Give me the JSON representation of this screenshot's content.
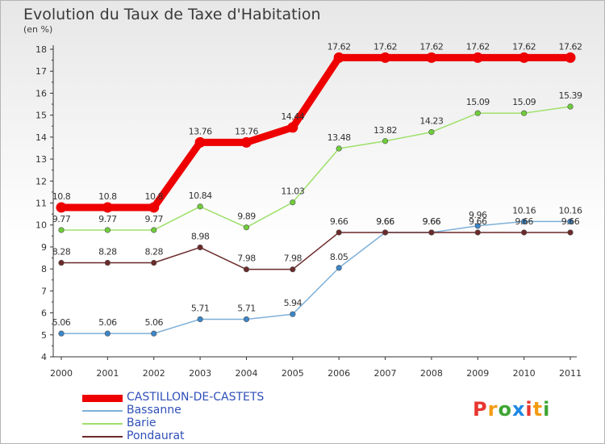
{
  "title": "Evolution du Taux de Taxe d'Habitation",
  "subtitle": "(en %)",
  "logo": {
    "text": "Proxiti",
    "colors": [
      "#e8362f",
      "#f39c12",
      "#3fa535",
      "#1e88e5",
      "#e8362f",
      "#f39c12",
      "#3fa535"
    ]
  },
  "chart_data": {
    "type": "line",
    "x": [
      "2000",
      "2001",
      "2002",
      "2003",
      "2004",
      "2005",
      "2006",
      "2007",
      "2008",
      "2009",
      "2010",
      "2011"
    ],
    "ylim": [
      4,
      18
    ],
    "yticks": [
      4,
      5,
      6,
      7,
      8,
      9,
      10,
      11,
      12,
      13,
      14,
      15,
      16,
      17,
      18
    ],
    "grid": false,
    "legend_position": "bottom",
    "series": [
      {
        "name": "CASTILLON-DE-CASTETS",
        "color": "#ee0000",
        "width": 9,
        "marker_color": "#ee0000",
        "values": [
          10.8,
          10.8,
          10.8,
          13.76,
          13.76,
          14.44,
          17.62,
          17.62,
          17.62,
          17.62,
          17.62,
          17.62
        ],
        "labels": [
          "10.8",
          "10.8",
          "10.8",
          "13.76",
          "13.76",
          "14.44",
          "17.62",
          "17.62",
          "17.62",
          "17.62",
          "17.62",
          "17.62"
        ]
      },
      {
        "name": "Bassanne",
        "color": "#7fb0d8",
        "width": 1.5,
        "marker_color": "#3b86c9",
        "values": [
          5.06,
          5.06,
          5.06,
          5.71,
          5.71,
          5.94,
          8.05,
          9.66,
          9.66,
          9.96,
          10.16,
          10.16
        ],
        "labels": [
          "5.06",
          "5.06",
          "5.06",
          "5.71",
          "5.71",
          "5.94",
          "8.05",
          "9.66",
          "9.66",
          "9.96",
          "10.16",
          "10.16"
        ]
      },
      {
        "name": "Barie",
        "color": "#9ee06a",
        "width": 1.5,
        "marker_color": "#6fcc3a",
        "values": [
          9.77,
          9.77,
          9.77,
          10.84,
          9.89,
          11.03,
          13.48,
          13.82,
          14.23,
          15.09,
          15.09,
          15.39
        ],
        "labels": [
          "9.77",
          "9.77",
          "9.77",
          "10.84",
          "9.89",
          "11.03",
          "13.48",
          "13.82",
          "14.23",
          "15.09",
          "15.09",
          "15.39"
        ]
      },
      {
        "name": "Pondaurat",
        "color": "#6b2a2a",
        "width": 1.5,
        "marker_color": "#6b2a2a",
        "values": [
          8.28,
          8.28,
          8.28,
          8.98,
          7.98,
          7.98,
          9.66,
          9.66,
          9.66,
          9.66,
          9.66,
          9.66
        ],
        "labels": [
          "8.28",
          "8.28",
          "8.28",
          "8.98",
          "7.98",
          "7.98",
          "9.66",
          "9.66",
          "9.66",
          "9.66",
          "9.66",
          "9.66"
        ]
      }
    ]
  }
}
